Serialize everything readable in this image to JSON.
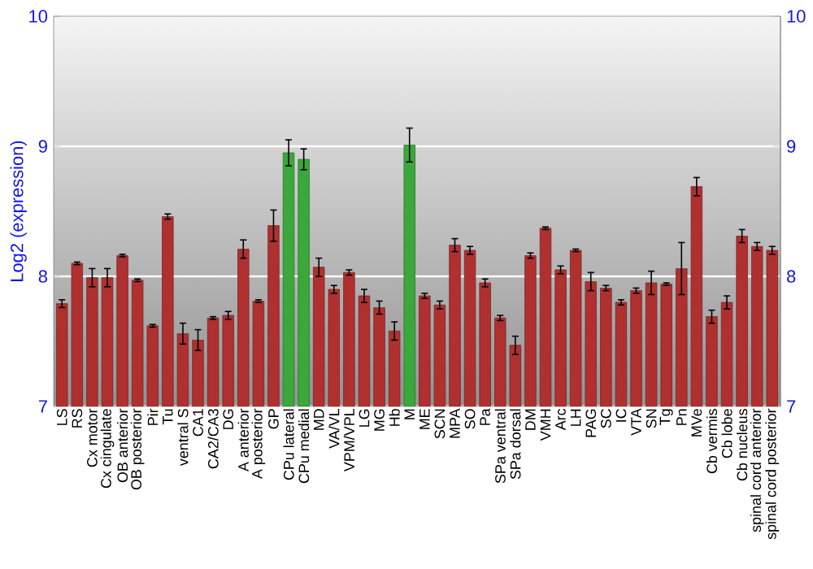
{
  "chart_data": {
    "type": "bar",
    "ylabel": "Log2 (expression)",
    "categories": [
      "LS",
      "RS",
      "Cx motor",
      "Cx cingulate",
      "OB anterior",
      "OB posterior",
      "Pir",
      "Tu",
      "ventral S",
      "CA1",
      "CA2/CA3",
      "DG",
      "A anterior",
      "A posterior",
      "GP",
      "CPu lateral",
      "CPu medial",
      "MD",
      "VA/VL",
      "VPM/VPL",
      "LG",
      "MG",
      "Hb",
      "M",
      "ME",
      "SCN",
      "MPA",
      "SO",
      "Pa",
      "SPa ventral",
      "SPa dorsal",
      "DM",
      "VMH",
      "Arc",
      "LH",
      "PAG",
      "SC",
      "IC",
      "VTA",
      "SN",
      "Tg",
      "Pn",
      "MVe",
      "Cb vermis",
      "Cb lobe",
      "Cb nucleus",
      "spinal cord anterior",
      "spinal cord posterior"
    ],
    "values": [
      7.79,
      8.1,
      7.99,
      7.99,
      8.16,
      7.97,
      7.62,
      8.46,
      7.56,
      7.51,
      7.68,
      7.7,
      8.21,
      7.81,
      8.39,
      8.95,
      8.9,
      8.07,
      7.9,
      8.03,
      7.85,
      7.76,
      7.58,
      9.01,
      7.85,
      7.78,
      8.24,
      8.2,
      7.95,
      7.68,
      7.47,
      8.16,
      8.37,
      8.05,
      8.2,
      7.96,
      7.91,
      7.8,
      7.89,
      7.95,
      7.94,
      8.06,
      8.69,
      7.69,
      7.8,
      8.31,
      8.23,
      8.2
    ],
    "errors": [
      0.03,
      0.01,
      0.07,
      0.07,
      0.01,
      0.01,
      0.01,
      0.02,
      0.08,
      0.08,
      0.01,
      0.03,
      0.07,
      0.01,
      0.12,
      0.1,
      0.08,
      0.07,
      0.03,
      0.02,
      0.05,
      0.05,
      0.07,
      0.13,
      0.02,
      0.03,
      0.05,
      0.03,
      0.03,
      0.02,
      0.07,
      0.02,
      0.01,
      0.03,
      0.01,
      0.07,
      0.02,
      0.02,
      0.02,
      0.09,
      0.01,
      0.2,
      0.07,
      0.05,
      0.05,
      0.05,
      0.03,
      0.03
    ],
    "colors": [
      "#b03030",
      "#b03030",
      "#b03030",
      "#b03030",
      "#b03030",
      "#b03030",
      "#b03030",
      "#b03030",
      "#b03030",
      "#b03030",
      "#b03030",
      "#b03030",
      "#b03030",
      "#b03030",
      "#b03030",
      "#3aa83a",
      "#3aa83a",
      "#b03030",
      "#b03030",
      "#b03030",
      "#b03030",
      "#b03030",
      "#b03030",
      "#3aa83a",
      "#b03030",
      "#b03030",
      "#b03030",
      "#b03030",
      "#b03030",
      "#b03030",
      "#b03030",
      "#b03030",
      "#b03030",
      "#b03030",
      "#b03030",
      "#b03030",
      "#b03030",
      "#b03030",
      "#b03030",
      "#b03030",
      "#b03030",
      "#b03030",
      "#b03030",
      "#b03030",
      "#b03030",
      "#b03030",
      "#b03030",
      "#b03030"
    ],
    "ylim": [
      7,
      10
    ],
    "yticks": [
      7,
      8,
      9,
      10
    ],
    "y2lim": [
      7,
      10
    ],
    "y2ticks": [
      7,
      8,
      9,
      10
    ],
    "grid": "y"
  }
}
